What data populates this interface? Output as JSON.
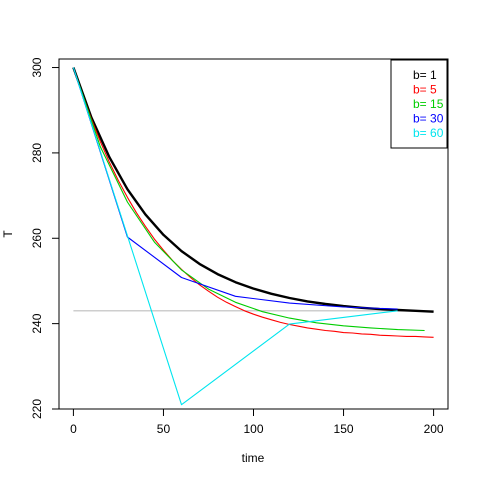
{
  "chart_data": {
    "type": "line",
    "title": "",
    "xlabel": "time",
    "ylabel": "T",
    "xlim": [
      -8,
      208
    ],
    "ylim": [
      220,
      302
    ],
    "x_ticks": [
      0,
      50,
      100,
      150,
      200
    ],
    "y_ticks": [
      220,
      240,
      260,
      280,
      300
    ],
    "grid": false,
    "legend_position": "top-right",
    "reference_line": {
      "y": 243,
      "x_range": [
        0,
        200
      ],
      "color": "#bebebe"
    },
    "series": [
      {
        "name": "b= 1",
        "color": "#000000",
        "x": [
          0,
          10,
          20,
          30,
          40,
          50,
          60,
          70,
          80,
          90,
          100,
          110,
          120,
          130,
          140,
          150,
          160,
          170,
          180,
          190,
          200
        ],
        "y": [
          300,
          288.3,
          279.0,
          271.5,
          265.6,
          260.8,
          257.0,
          254.0,
          251.6,
          249.7,
          248.2,
          247.0,
          246.0,
          245.2,
          244.6,
          244.1,
          243.7,
          243.4,
          243.2,
          243.0,
          242.8
        ]
      },
      {
        "name": "b= 5",
        "color": "#ff0000",
        "x": [
          0,
          5,
          10,
          15,
          20,
          25,
          30,
          35,
          40,
          45,
          50,
          55,
          60,
          65,
          70,
          75,
          80,
          85,
          90,
          95,
          100,
          105,
          110,
          115,
          120,
          125,
          130,
          135,
          140,
          145,
          150,
          155,
          160,
          165,
          170,
          175,
          180,
          185,
          190,
          195,
          200
        ],
        "y": [
          300,
          293.7,
          287.9,
          282.6,
          277.8,
          273.5,
          269.6,
          266.0,
          262.8,
          259.8,
          257.2,
          254.8,
          252.7,
          250.8,
          249.1,
          247.6,
          246.2,
          245.0,
          244.0,
          243.0,
          242.2,
          241.5,
          240.9,
          240.3,
          239.8,
          239.4,
          239.0,
          238.7,
          238.4,
          238.2,
          237.9,
          237.8,
          237.6,
          237.5,
          237.3,
          237.2,
          237.1,
          237.0,
          237.0,
          236.9,
          236.8
        ]
      },
      {
        "name": "b= 15",
        "color": "#00cd00",
        "x": [
          0,
          15,
          30,
          45,
          60,
          75,
          90,
          105,
          120,
          135,
          150,
          165,
          180,
          195
        ],
        "y": [
          300,
          281.4,
          268.5,
          259.1,
          252.6,
          248.1,
          245.0,
          242.8,
          241.3,
          240.2,
          239.5,
          239.0,
          238.6,
          238.4
        ]
      },
      {
        "name": "b= 30",
        "color": "#0000ff",
        "x": [
          0,
          30,
          60,
          90,
          120,
          150,
          180
        ],
        "y": [
          300,
          260.3,
          250.8,
          246.4,
          244.8,
          243.9,
          243.4
        ]
      },
      {
        "name": "b= 60",
        "color": "#00e5ee",
        "x": [
          0,
          30,
          60,
          120,
          180
        ],
        "y": [
          300,
          260.6,
          221.0,
          239.9,
          243.0
        ]
      }
    ]
  }
}
